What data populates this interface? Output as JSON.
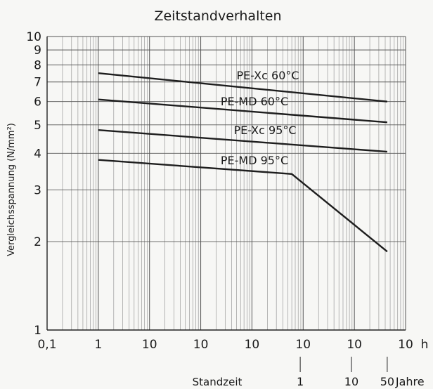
{
  "chart_data": {
    "type": "line",
    "title": "Zeitstandverhalten",
    "ylabel": "Vergleichsspannung (N/mm²)",
    "xscale": "log",
    "yscale": "log",
    "xlim": [
      0.1,
      1000000
    ],
    "ylim": [
      1,
      10
    ],
    "grid": true,
    "x_tick_labels": [
      {
        "x": 0.1,
        "text": "0,1"
      },
      {
        "x": 1,
        "text": "1"
      },
      {
        "x": 10,
        "text": "10"
      },
      {
        "x": 100,
        "text": "10"
      },
      {
        "x": 1000,
        "text": "10"
      },
      {
        "x": 10000,
        "text": "10"
      },
      {
        "x": 100000,
        "text": "10"
      },
      {
        "x": 1000000,
        "text": "10"
      }
    ],
    "x_unit": "h",
    "y_tick_labels": [
      1,
      2,
      3,
      4,
      5,
      6,
      7,
      8,
      9,
      10
    ],
    "secondary_axis": {
      "label": "Standzeit",
      "unit": "Jahre",
      "ticks": [
        {
          "years": 1,
          "text": "1"
        },
        {
          "years": 10,
          "text": "10"
        },
        {
          "years": 50,
          "text": "50"
        }
      ]
    },
    "series": [
      {
        "name": "PE-Xc 60°C",
        "points": [
          [
            1,
            7.5
          ],
          [
            438000,
            6.0
          ]
        ]
      },
      {
        "name": "PE-MD 60°C",
        "points": [
          [
            1,
            6.1
          ],
          [
            438000,
            5.1
          ]
        ]
      },
      {
        "name": "PE-Xc 95°C",
        "points": [
          [
            1,
            4.8
          ],
          [
            438000,
            4.05
          ]
        ]
      },
      {
        "name": "PE-MD 95°C",
        "points": [
          [
            1,
            3.8
          ],
          [
            6000,
            3.4
          ],
          [
            438000,
            1.85
          ]
        ]
      }
    ]
  }
}
